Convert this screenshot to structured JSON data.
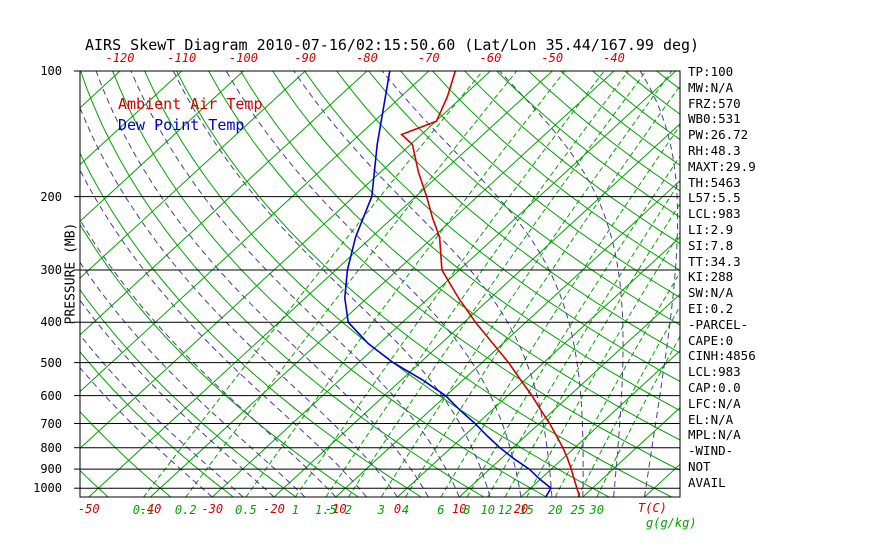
{
  "title": "AIRS SkewT Diagram 2010-07-16/02:15:50.60 (Lat/Lon 35.44/167.99 deg)",
  "legend": {
    "ambient": "Ambient Air Temp",
    "dew": "Dew Point Temp"
  },
  "axes": {
    "y_label": "PRESSURE (MB)",
    "x_unit": "T(C)",
    "w_unit": "g(g/kg)",
    "pressure_ticks_mb": [
      100,
      200,
      300,
      400,
      500,
      600,
      700,
      800,
      900,
      1000
    ],
    "top_temperature_ticks_c": [
      -120,
      -110,
      -100,
      -90,
      -80,
      -70,
      -60,
      -50,
      -40
    ],
    "bottom_temperature_ticks_c": [
      -50,
      -40,
      -30,
      -20,
      -10,
      0,
      10,
      20
    ],
    "mixing_ratio_ticks_g_kg": [
      0.1,
      0.2,
      0.5,
      1,
      1.5,
      2,
      3,
      4,
      6,
      8,
      10,
      12,
      15,
      20,
      25,
      30
    ]
  },
  "stats_panel": {
    "lines": [
      "TP:100",
      "MW:N/A",
      "FRZ:570",
      "WB0:531",
      "PW:26.72",
      "RH:48.3",
      "MAXT:29.9",
      "TH:5463",
      "L57:5.5",
      "LCL:983",
      "LI:2.9",
      "SI:7.8",
      "TT:34.3",
      "KI:288",
      "SW:N/A",
      "EI:0.2",
      "-PARCEL-",
      "CAPE:0",
      "CINH:4856",
      "LCL:983",
      "CAP:0.0",
      "LFC:N/A",
      "EL:N/A",
      "MPL:N/A",
      "-WIND-",
      "NOT",
      "AVAIL"
    ]
  },
  "colors": {
    "red": "#d40000",
    "blue": "#0000cc",
    "green": "#00a300",
    "purple": "#483d8b",
    "black": "#000000"
  },
  "chart_data": {
    "type": "line",
    "title": "AIRS SkewT Diagram 2010-07-16/02:15:50.60 (Lat/Lon 35.44/167.99 deg)",
    "x_axis": {
      "label": "T(C)",
      "top_scale_range_c": [
        -120,
        -40
      ],
      "skewed_isotherms": true
    },
    "y_axis": {
      "label": "PRESSURE (MB)",
      "scale": "log",
      "range_mb": [
        100,
        1050
      ]
    },
    "series": [
      {
        "name": "Ambient Air Temp",
        "color_key": "red",
        "points_p_t": [
          [
            1050,
            29.5
          ],
          [
            1000,
            27.5
          ],
          [
            950,
            25.4
          ],
          [
            900,
            23.2
          ],
          [
            850,
            20.8
          ],
          [
            800,
            18.1
          ],
          [
            750,
            15.0
          ],
          [
            700,
            11.7
          ],
          [
            650,
            7.9
          ],
          [
            600,
            3.9
          ],
          [
            550,
            -0.7
          ],
          [
            500,
            -5.7
          ],
          [
            450,
            -11.6
          ],
          [
            400,
            -18.2
          ],
          [
            350,
            -25.2
          ],
          [
            300,
            -32.8
          ],
          [
            250,
            -39.0
          ],
          [
            225,
            -43.5
          ],
          [
            200,
            -48.2
          ],
          [
            175,
            -53.8
          ],
          [
            150,
            -59.7
          ],
          [
            142,
            -63.2
          ],
          [
            132,
            -59.9
          ],
          [
            115,
            -62.5
          ],
          [
            100,
            -65.7
          ]
        ]
      },
      {
        "name": "Dew Point Temp",
        "color_key": "blue",
        "points_p_t": [
          [
            1050,
            24.0
          ],
          [
            1000,
            23.3
          ],
          [
            950,
            19.8
          ],
          [
            900,
            16.4
          ],
          [
            850,
            12.1
          ],
          [
            800,
            7.9
          ],
          [
            750,
            3.8
          ],
          [
            700,
            -0.4
          ],
          [
            650,
            -5.2
          ],
          [
            600,
            -10.1
          ],
          [
            550,
            -16.6
          ],
          [
            500,
            -24.4
          ],
          [
            450,
            -31.8
          ],
          [
            400,
            -38.8
          ],
          [
            350,
            -43.6
          ],
          [
            300,
            -48.1
          ],
          [
            250,
            -52.6
          ],
          [
            200,
            -57.1
          ],
          [
            150,
            -65.4
          ],
          [
            100,
            -76.3
          ]
        ]
      }
    ],
    "reference_lines": {
      "isotherms_c": [
        -120,
        -110,
        -100,
        -90,
        -80,
        -70,
        -60,
        -50,
        -40,
        -30,
        -20,
        -10,
        0,
        10,
        20,
        30,
        40
      ],
      "dry_adiabats_theta_c": [
        -60,
        -50,
        -40,
        -30,
        -20,
        -10,
        0,
        10,
        20,
        30,
        40,
        50,
        60,
        70,
        80,
        90,
        100,
        110,
        120,
        130,
        140,
        150,
        160,
        170,
        180,
        190
      ],
      "moist_adiabats_surface_t_c": [
        -30,
        -25,
        -20,
        -15,
        -10,
        -5,
        0,
        5,
        10,
        15,
        20,
        25,
        30,
        35,
        40
      ],
      "saturation_mixing_ratio_g_kg": [
        0.1,
        0.2,
        0.5,
        1,
        1.5,
        2,
        3,
        4,
        6,
        8,
        10,
        12,
        15,
        20,
        25,
        30
      ],
      "isobars_mb": [
        100,
        200,
        300,
        400,
        500,
        600,
        700,
        800,
        900,
        1000
      ]
    }
  }
}
